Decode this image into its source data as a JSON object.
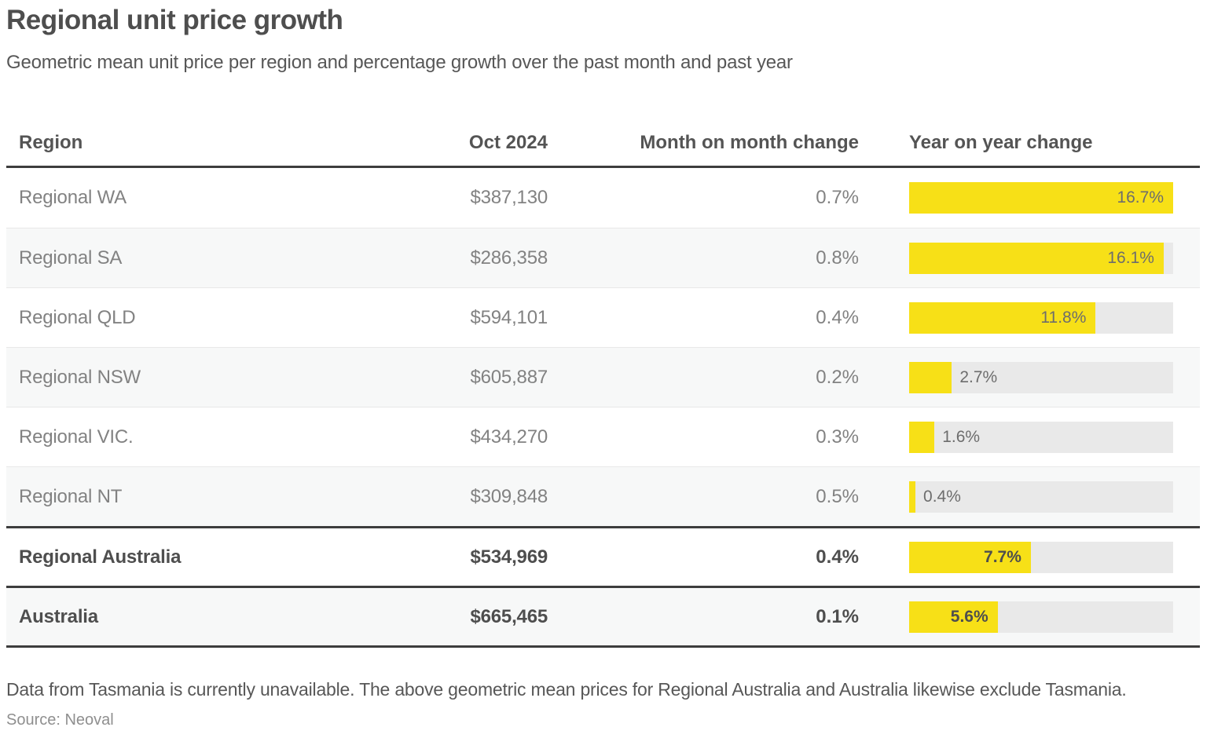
{
  "title": "Regional unit price growth",
  "subtitle": "Geometric mean unit price per region and percentage growth over the past month and past year",
  "table": {
    "headers": {
      "region": "Region",
      "price": "Oct 2024",
      "mom": "Month on month change",
      "yoy": "Year on year change"
    },
    "rows": [
      {
        "region": "Regional WA",
        "price": "$387,130",
        "mom": "0.7%",
        "yoy_value": 16.7,
        "yoy_label": "16.7%"
      },
      {
        "region": "Regional SA",
        "price": "$286,358",
        "mom": "0.8%",
        "yoy_value": 16.1,
        "yoy_label": "16.1%"
      },
      {
        "region": "Regional QLD",
        "price": "$594,101",
        "mom": "0.4%",
        "yoy_value": 11.8,
        "yoy_label": "11.8%"
      },
      {
        "region": "Regional NSW",
        "price": "$605,887",
        "mom": "0.2%",
        "yoy_value": 2.7,
        "yoy_label": "2.7%"
      },
      {
        "region": "Regional VIC.",
        "price": "$434,270",
        "mom": "0.3%",
        "yoy_value": 1.6,
        "yoy_label": "1.6%"
      },
      {
        "region": "Regional NT",
        "price": "$309,848",
        "mom": "0.5%",
        "yoy_value": 0.4,
        "yoy_label": "0.4%"
      },
      {
        "region": "Regional Australia",
        "price": "$534,969",
        "mom": "0.4%",
        "yoy_value": 7.7,
        "yoy_label": "7.7%"
      },
      {
        "region": "Australia",
        "price": "$665,465",
        "mom": "0.1%",
        "yoy_value": 5.6,
        "yoy_label": "5.6%"
      }
    ]
  },
  "chart": {
    "scale_max": 16.7,
    "bar_color": "#f7e017",
    "track_color": "#e9e9e9"
  },
  "footnote": "Data from Tasmania is currently unavailable. The above geometric mean prices for Regional Australia and Australia likewise exclude Tasmania.",
  "source": "Source: Neoval",
  "chart_data": {
    "type": "table",
    "title": "Regional unit price growth",
    "subtitle": "Geometric mean unit price per region and percentage growth over the past month and past year",
    "columns": [
      "Region",
      "Oct 2024",
      "Month on month change",
      "Year on year change"
    ],
    "categories": [
      "Regional WA",
      "Regional SA",
      "Regional QLD",
      "Regional NSW",
      "Regional VIC.",
      "Regional NT",
      "Regional Australia",
      "Australia"
    ],
    "series": [
      {
        "name": "Oct 2024 geometric mean unit price ($)",
        "values": [
          387130,
          286358,
          594101,
          605887,
          434270,
          309848,
          534969,
          665465
        ]
      },
      {
        "name": "Month on month change (%)",
        "values": [
          0.7,
          0.8,
          0.4,
          0.2,
          0.3,
          0.5,
          0.4,
          0.1
        ]
      },
      {
        "name": "Year on year change (%)",
        "values": [
          16.7,
          16.1,
          11.8,
          2.7,
          1.6,
          0.4,
          7.7,
          5.6
        ]
      }
    ],
    "bar_axis_max": 16.7,
    "legend_position": "none",
    "grid": false,
    "notes": "Year on year change rendered as in-cell yellow bars scaled to max value 16.7%"
  }
}
